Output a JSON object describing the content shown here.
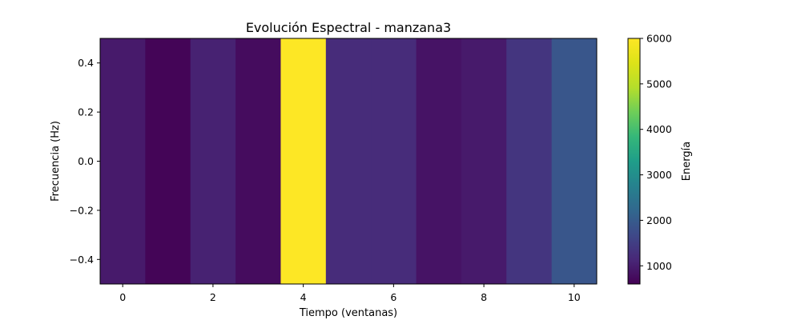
{
  "chart_data": {
    "type": "heatmap",
    "title": "Evolución Espectral - manzana3",
    "xlabel": "Tiempo (ventanas)",
    "ylabel": "Frecuencia (Hz)",
    "colorbar_label": "Energía",
    "colormap": "viridis",
    "x": [
      0,
      1,
      2,
      3,
      4,
      5,
      6,
      7,
      8,
      9,
      10
    ],
    "values": [
      950,
      650,
      1050,
      750,
      6000,
      1200,
      1200,
      850,
      950,
      1350,
      1900
    ],
    "xlim": [
      -0.5,
      10.5
    ],
    "ylim": [
      -0.5,
      0.5
    ],
    "clim": [
      600,
      6000
    ],
    "xticks": [
      0,
      2,
      4,
      6,
      8,
      10
    ],
    "xtick_labels": [
      "0",
      "2",
      "4",
      "6",
      "8",
      "10"
    ],
    "yticks": [
      -0.4,
      -0.2,
      0.0,
      0.2,
      0.4
    ],
    "ytick_labels": [
      "−0.4",
      "−0.2",
      "0.0",
      "0.2",
      "0.4"
    ],
    "cticks": [
      1000,
      2000,
      3000,
      4000,
      5000,
      6000
    ],
    "ctick_labels": [
      "1000",
      "2000",
      "3000",
      "4000",
      "5000",
      "6000"
    ],
    "grid": false
  }
}
